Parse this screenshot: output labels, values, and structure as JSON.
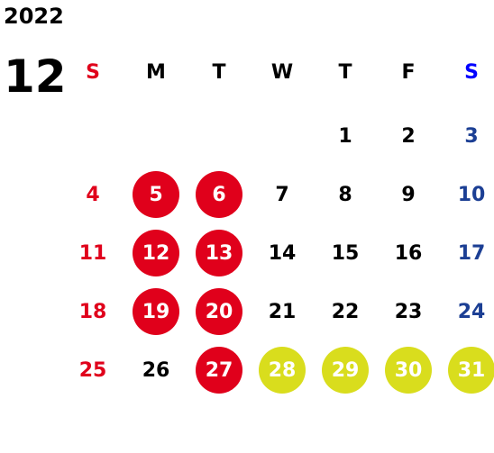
{
  "year": "2022",
  "month": "12",
  "colors": {
    "sunday": "#e0001b",
    "saturday": "#1c3f94",
    "weekday": "#000000",
    "highlight_red": "#e0001b",
    "highlight_yellow": "#d9dd1d",
    "highlight_text": "#ffffff",
    "saturday_header": "#0000ff"
  },
  "weekdays": [
    "S",
    "M",
    "T",
    "W",
    "T",
    "F",
    "S"
  ],
  "weeks": [
    [
      null,
      null,
      null,
      null,
      "1",
      "2",
      "3"
    ],
    [
      "4",
      "5",
      "6",
      "7",
      "8",
      "9",
      "10"
    ],
    [
      "11",
      "12",
      "13",
      "14",
      "15",
      "16",
      "17"
    ],
    [
      "18",
      "19",
      "20",
      "21",
      "22",
      "23",
      "24"
    ],
    [
      "25",
      "26",
      "27",
      "28",
      "29",
      "30",
      "31"
    ]
  ],
  "highlighted_red": [
    "5",
    "6",
    "12",
    "13",
    "19",
    "20",
    "27"
  ],
  "highlighted_yellow": [
    "28",
    "29",
    "30",
    "31"
  ]
}
